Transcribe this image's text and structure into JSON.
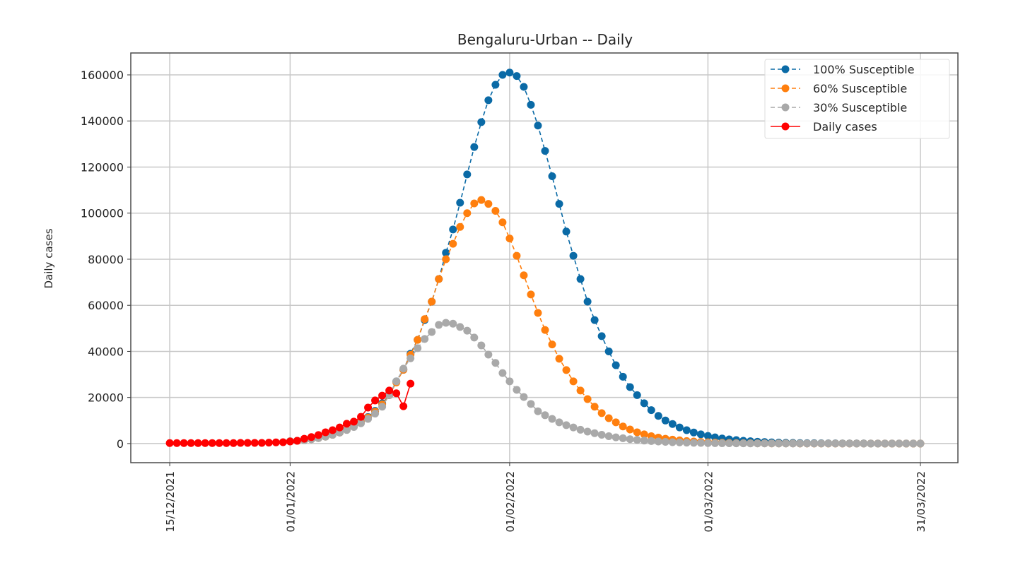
{
  "chart_data": {
    "type": "line",
    "title": "Bengaluru-Urban -- Daily",
    "xlabel": "",
    "ylabel": "Daily cases",
    "x_unit": "days since 15/12/2021",
    "xlim": [
      -5.5,
      111.3
    ],
    "ylim": [
      -8300,
      169500
    ],
    "grid": true,
    "legend_position": "top-right",
    "xticks": [
      {
        "value": 0,
        "label": "15/12/2021"
      },
      {
        "value": 17,
        "label": "01/01/2022"
      },
      {
        "value": 48,
        "label": "01/02/2022"
      },
      {
        "value": 76,
        "label": "01/03/2022"
      },
      {
        "value": 106,
        "label": "31/03/2022"
      }
    ],
    "yticks": [
      {
        "value": 0,
        "label": "0"
      },
      {
        "value": 20000,
        "label": "20000"
      },
      {
        "value": 40000,
        "label": "40000"
      },
      {
        "value": 60000,
        "label": "60000"
      },
      {
        "value": 80000,
        "label": "80000"
      },
      {
        "value": 100000,
        "label": "100000"
      },
      {
        "value": 120000,
        "label": "120000"
      },
      {
        "value": 140000,
        "label": "140000"
      },
      {
        "value": 160000,
        "label": "160000"
      }
    ],
    "series": [
      {
        "name": "100% Susceptible",
        "color": "#0a6aa6",
        "style": "dashed",
        "x_start": 17,
        "values": [
          1000,
          1200,
          1500,
          1900,
          2400,
          3000,
          3800,
          4800,
          6000,
          7500,
          9300,
          11500,
          14200,
          17500,
          21000,
          27000,
          32000,
          39000,
          45000,
          53600,
          61600,
          71400,
          82800,
          92900,
          104500,
          116800,
          128700,
          139500,
          149000,
          155700,
          160000,
          161000,
          159500,
          154800,
          147000,
          138000,
          127000,
          116000,
          104000,
          92000,
          81500,
          71400,
          61600,
          53600,
          46600,
          40000,
          34000,
          29000,
          24500,
          21000,
          17500,
          14500,
          12000,
          10000,
          8500,
          7000,
          5800,
          4800,
          4000,
          3300,
          2700,
          2200,
          1800,
          1500,
          1200,
          1000,
          800,
          650,
          500,
          400,
          330,
          270,
          220,
          180,
          150,
          120,
          100,
          80,
          70,
          60,
          50,
          40,
          30,
          30,
          20,
          20,
          20,
          10,
          10,
          10
        ]
      },
      {
        "name": "60% Susceptible",
        "color": "#ff7f0e",
        "style": "dashed",
        "x_start": 17,
        "values": [
          1000,
          1200,
          1500,
          1900,
          2400,
          3000,
          3800,
          4800,
          6000,
          7400,
          9200,
          11300,
          13800,
          17000,
          21000,
          26500,
          32000,
          38500,
          45000,
          54000,
          61600,
          71400,
          80000,
          86700,
          94000,
          100000,
          104200,
          105700,
          104000,
          101000,
          96000,
          89000,
          81500,
          73000,
          64700,
          56700,
          49300,
          43000,
          36800,
          31900,
          27000,
          23000,
          19300,
          16000,
          13200,
          11000,
          9200,
          7400,
          6100,
          4900,
          4000,
          3200,
          2600,
          2100,
          1700,
          1400,
          1100,
          900,
          700,
          550,
          450,
          350,
          280,
          220,
          180,
          140,
          110,
          90,
          70,
          60,
          50,
          40,
          30,
          30,
          20,
          20,
          20,
          10,
          10,
          10,
          10,
          10,
          10,
          10,
          0,
          0,
          0,
          0,
          0,
          0
        ]
      },
      {
        "name": "30% Susceptible",
        "color": "#a9a9a9",
        "style": "dashed",
        "x_start": 17,
        "values": [
          1000,
          1200,
          1500,
          1900,
          2400,
          3000,
          3800,
          4800,
          5900,
          7200,
          8800,
          10700,
          13000,
          16000,
          21000,
          27000,
          32500,
          37000,
          41400,
          45400,
          48400,
          51500,
          52400,
          52000,
          50600,
          49000,
          46000,
          42600,
          38600,
          35000,
          30600,
          27000,
          23300,
          20200,
          17200,
          14000,
          12300,
          10700,
          9200,
          8000,
          7000,
          6000,
          5200,
          4500,
          3800,
          3200,
          2700,
          2300,
          1900,
          1600,
          1300,
          1100,
          900,
          750,
          600,
          500,
          400,
          330,
          270,
          220,
          180,
          150,
          120,
          100,
          80,
          70,
          60,
          50,
          40,
          30,
          30,
          20,
          20,
          20,
          10,
          10,
          10,
          10,
          10,
          10,
          0,
          0,
          0,
          0,
          0,
          0,
          0,
          0,
          0,
          0
        ]
      },
      {
        "name": "Daily cases",
        "color": "#ff0000",
        "style": "solid",
        "x_start": 0,
        "values": [
          200,
          200,
          200,
          200,
          200,
          200,
          200,
          200,
          200,
          200,
          300,
          300,
          300,
          300,
          400,
          500,
          600,
          900,
          1200,
          2100,
          2800,
          3700,
          4900,
          5800,
          7000,
          8600,
          9500,
          11600,
          15600,
          18700,
          20800,
          23000,
          21800,
          16200,
          26000
        ]
      }
    ]
  }
}
